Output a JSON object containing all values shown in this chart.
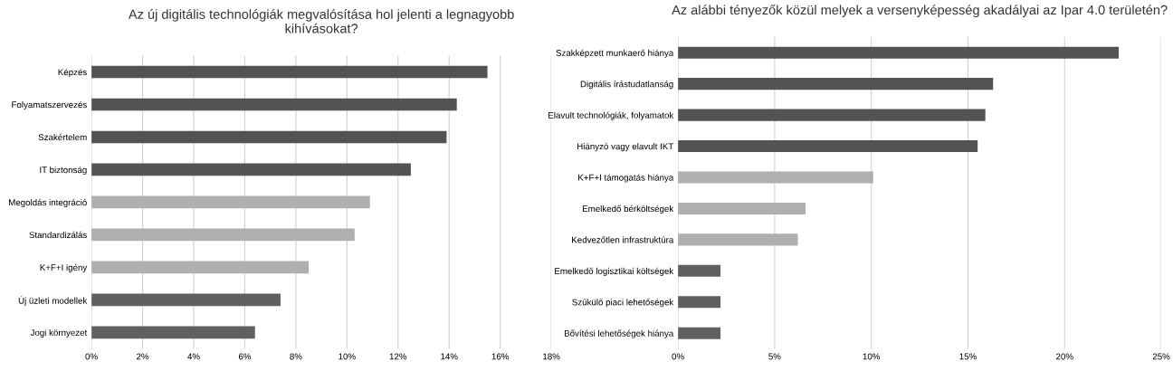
{
  "chart_data": [
    {
      "type": "bar",
      "orientation": "horizontal",
      "title": "Az új digitális technológiák megvalósítása hol jelenti a legnagyobb\nkihívásokat?",
      "categories": [
        "Képzés",
        "Folyamatszervezés",
        "Szakértelem",
        "IT biztonság",
        "Megoldás integráció",
        "Standardizálás",
        "K+F+I igény",
        "Új üzleti modellek",
        "Jogi környezet"
      ],
      "values": [
        15.5,
        14.3,
        13.9,
        12.5,
        10.9,
        10.3,
        8.5,
        7.4,
        6.4
      ],
      "colors": [
        "#525355",
        "#525355",
        "#525355",
        "#525355",
        "#aeafb1",
        "#aeafb1",
        "#aeafb1",
        "#5f6062",
        "#5f6062"
      ],
      "xlim": [
        0,
        18
      ],
      "xticks": [
        {
          "value": 0,
          "label": "0%"
        },
        {
          "value": 2,
          "label": "2%"
        },
        {
          "value": 4,
          "label": "4%"
        },
        {
          "value": 6,
          "label": "6%"
        },
        {
          "value": 8,
          "label": "8%"
        },
        {
          "value": 10,
          "label": "10%"
        },
        {
          "value": 12,
          "label": "12%"
        },
        {
          "value": 14,
          "label": "14%"
        },
        {
          "value": 16,
          "label": "16%"
        },
        {
          "value": 18,
          "label": "18%"
        }
      ],
      "grid": "x"
    },
    {
      "type": "bar",
      "orientation": "horizontal",
      "title": "Az alábbi tényezők közül melyek a versenyképesség akadályai az Ipar 4.0 területén?",
      "categories": [
        "Szakképzett munkaerő hiánya",
        "Digitális írástudatlanság",
        "Elavult technológiák, folyamatok",
        "Hiányzó vagy elavult IKT",
        "K+F+I támogatás hiánya",
        "Emelkedő bérköltségek",
        "Kedvezőtlen infrastruktúra",
        "Emelkedő logisztikai költségek",
        "Szűkülő piaci lehetőségek",
        "Bővítési lehetőségek hiánya"
      ],
      "values": [
        22.8,
        16.3,
        15.9,
        15.5,
        10.1,
        6.6,
        6.2,
        2.2,
        2.2,
        2.2
      ],
      "colors": [
        "#525355",
        "#525355",
        "#525355",
        "#525355",
        "#aeafb1",
        "#aeafb1",
        "#aeafb1",
        "#5f6062",
        "#5f6062",
        "#5f6062"
      ],
      "xlim": [
        0,
        25
      ],
      "xticks": [
        {
          "value": 0,
          "label": "0%"
        },
        {
          "value": 5,
          "label": "5%"
        },
        {
          "value": 10,
          "label": "10%"
        },
        {
          "value": 15,
          "label": "15%"
        },
        {
          "value": 20,
          "label": "20%"
        },
        {
          "value": 25,
          "label": "25%"
        }
      ],
      "grid": "x"
    }
  ]
}
